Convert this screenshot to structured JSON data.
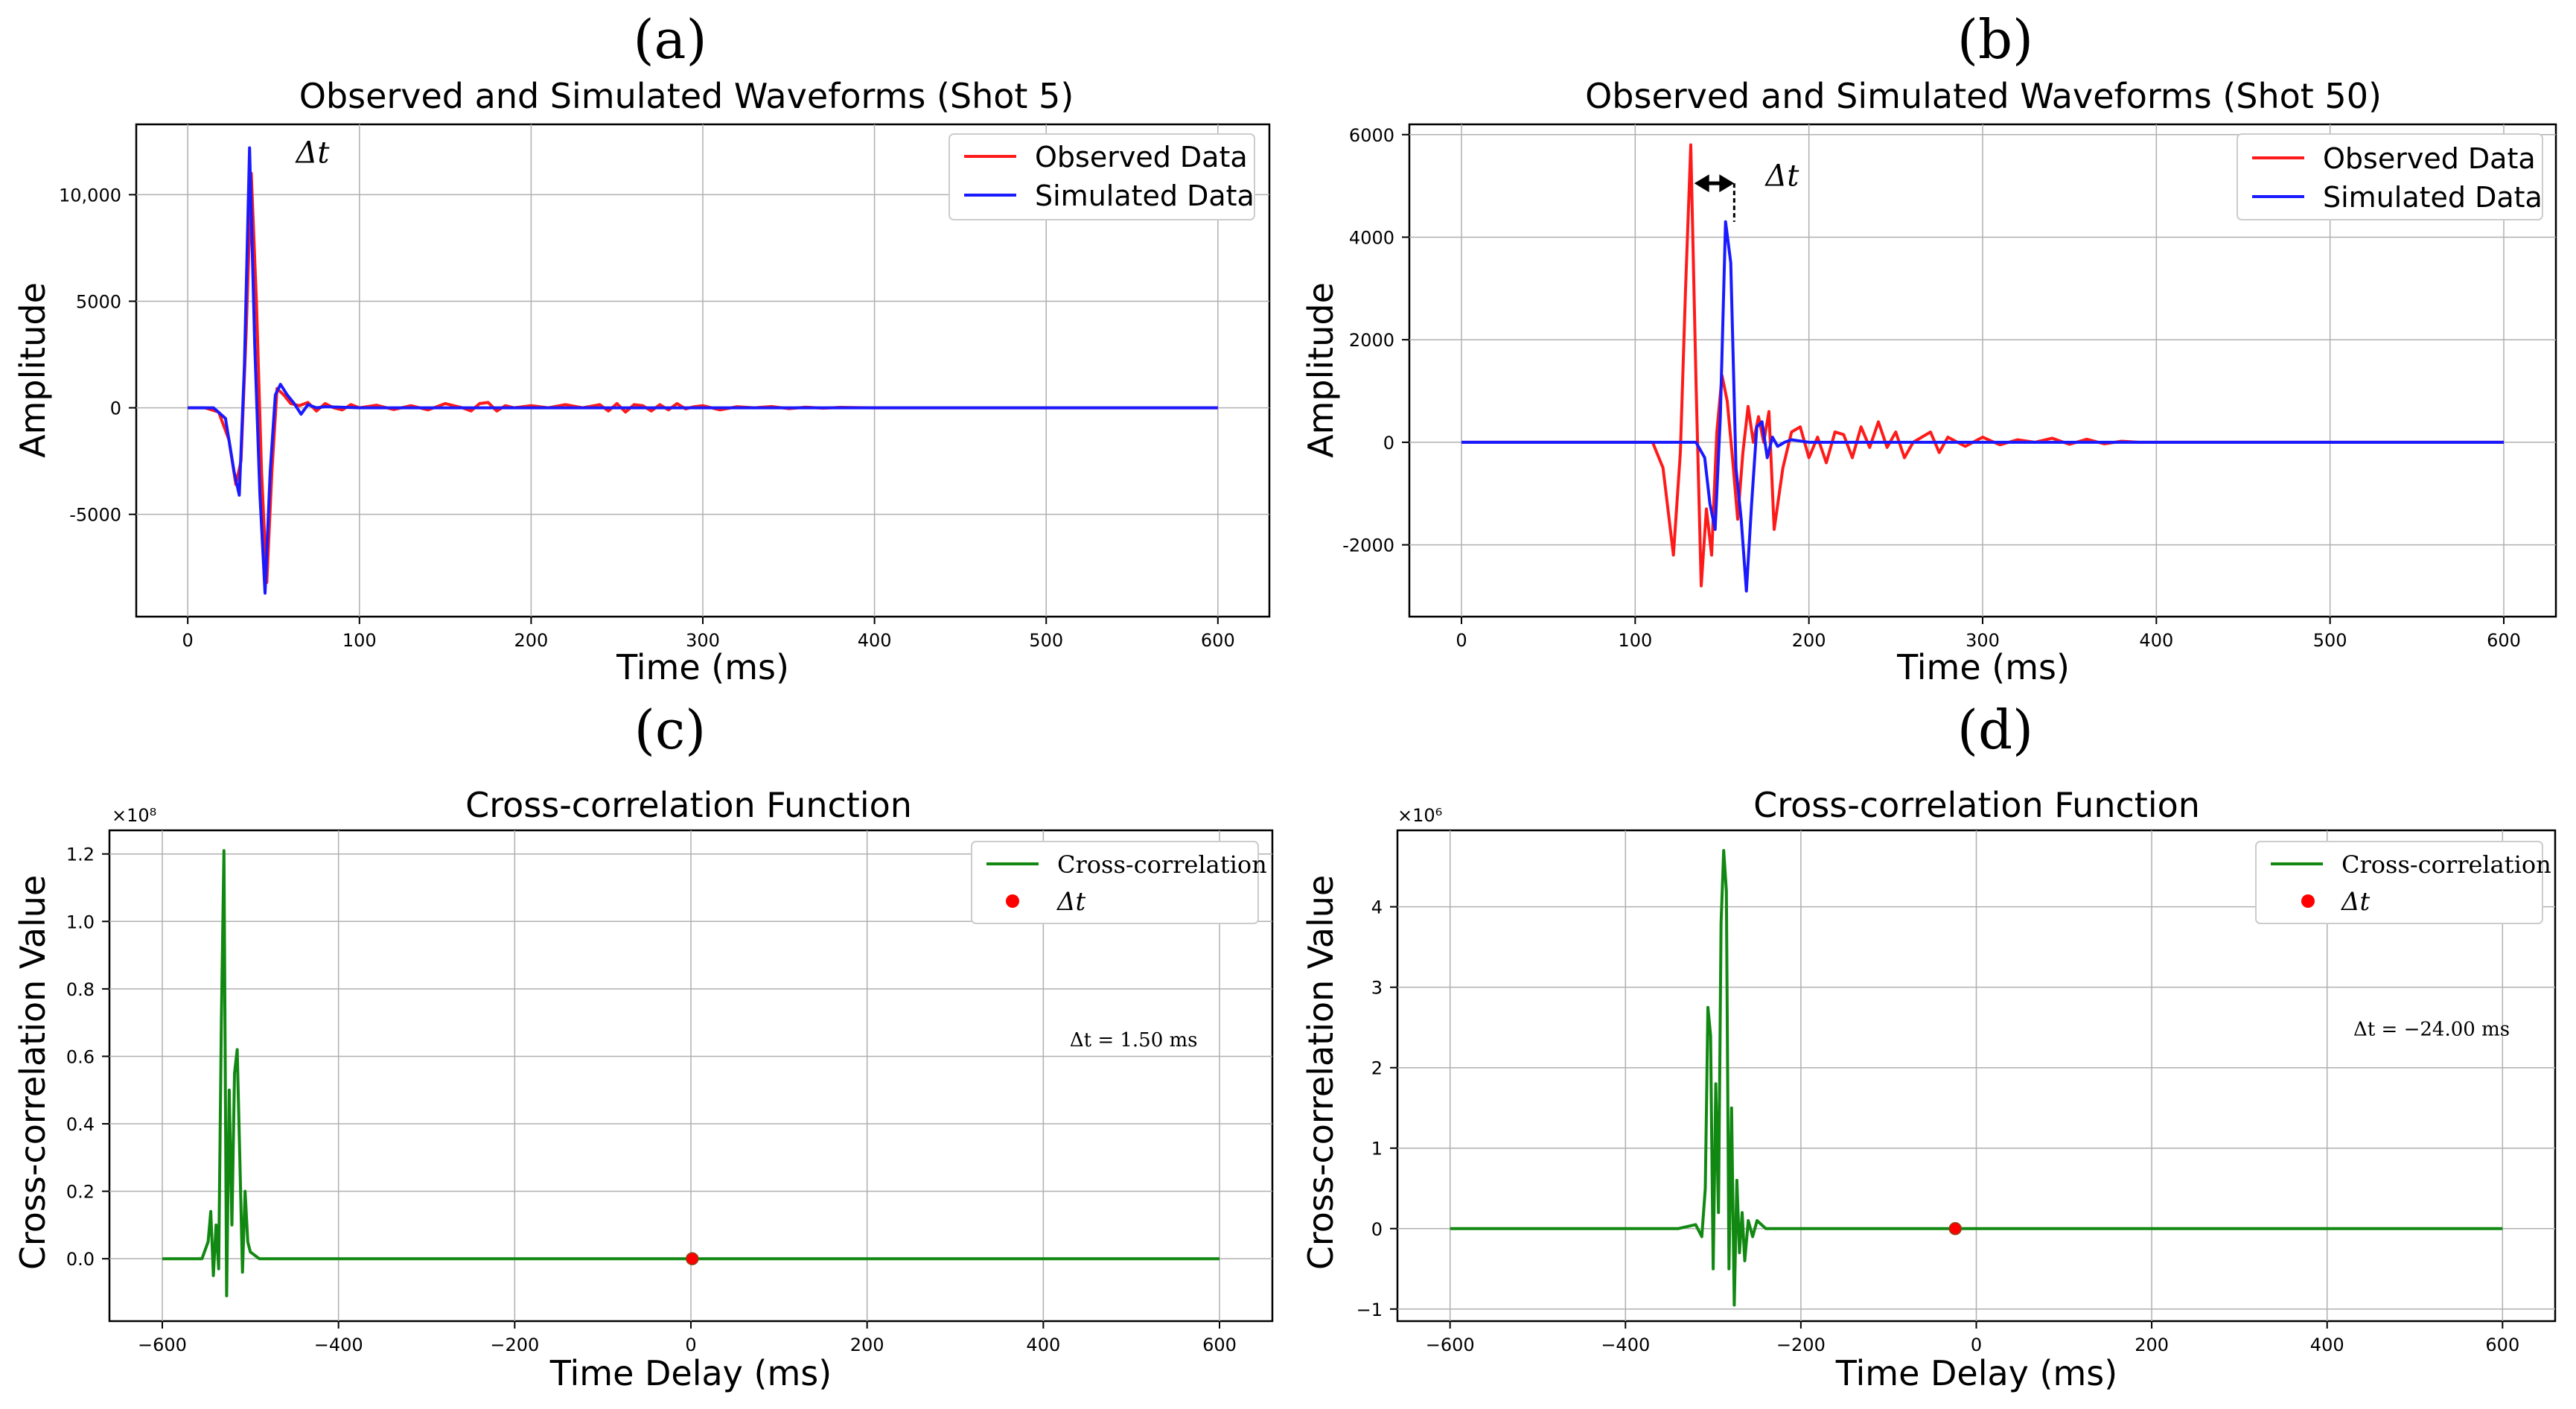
{
  "chart_data": [
    {
      "panel_label": "(a)",
      "type": "line",
      "title": "Observed and Simulated Waveforms (Shot 5)",
      "xlabel": "Time (ms)",
      "ylabel": "Amplitude",
      "xlim": [
        -30,
        630
      ],
      "ylim": [
        -9800,
        13300
      ],
      "xticks": [
        0,
        100,
        200,
        300,
        400,
        500,
        600
      ],
      "xtick_labels": [
        "0",
        "100",
        "200",
        "300",
        "400",
        "500",
        "600"
      ],
      "yticks": [
        -5000,
        0,
        5000,
        10000
      ],
      "ytick_labels": [
        "-5000",
        "0",
        "5000",
        "10,000"
      ],
      "grid": true,
      "legend_position": "top-right",
      "annotation": {
        "text": "Δt",
        "x": 63,
        "y": 11500
      },
      "series": [
        {
          "name": "Observed Data",
          "color": "#ff1a1a",
          "x": [
            0,
            10,
            18,
            24,
            28,
            31,
            34,
            37,
            40,
            43,
            46,
            49,
            52,
            56,
            60,
            65,
            70,
            75,
            80,
            85,
            90,
            95,
            100,
            110,
            120,
            130,
            140,
            150,
            160,
            165,
            170,
            175,
            180,
            185,
            190,
            200,
            210,
            220,
            230,
            240,
            245,
            250,
            255,
            260,
            265,
            270,
            275,
            280,
            285,
            290,
            295,
            300,
            310,
            320,
            330,
            340,
            350,
            360,
            370,
            380,
            400,
            450,
            500,
            550,
            600
          ],
          "y": [
            0,
            0,
            -200,
            -1500,
            -3600,
            -2500,
            3500,
            11000,
            5000,
            -3000,
            -8200,
            -3000,
            900,
            600,
            200,
            100,
            250,
            -150,
            200,
            0,
            -100,
            150,
            0,
            120,
            -80,
            100,
            -100,
            200,
            0,
            -150,
            200,
            250,
            -150,
            100,
            0,
            100,
            0,
            150,
            0,
            150,
            -150,
            200,
            -200,
            150,
            100,
            -150,
            150,
            -100,
            200,
            -50,
            50,
            100,
            -100,
            50,
            0,
            60,
            -40,
            30,
            -20,
            20,
            0,
            0,
            0,
            0,
            0
          ]
        },
        {
          "name": "Simulated Data",
          "color": "#1a1aff",
          "x": [
            0,
            15,
            22,
            27,
            30,
            33,
            36,
            39,
            42,
            45,
            48,
            51,
            54,
            58,
            62,
            66,
            70,
            75,
            80,
            100,
            150,
            200,
            300,
            400,
            500,
            600
          ],
          "y": [
            0,
            0,
            -500,
            -3000,
            -4100,
            2000,
            12200,
            3000,
            -4000,
            -8700,
            -3000,
            600,
            1100,
            600,
            200,
            -300,
            150,
            0,
            50,
            0,
            0,
            0,
            0,
            0,
            0,
            0
          ]
        }
      ]
    },
    {
      "panel_label": "(b)",
      "type": "line",
      "title": "Observed and Simulated Waveforms (Shot 50)",
      "xlabel": "Time (ms)",
      "ylabel": "Amplitude",
      "xlim": [
        -30,
        630
      ],
      "ylim": [
        -3400,
        6200
      ],
      "xticks": [
        0,
        100,
        200,
        300,
        400,
        500,
        600
      ],
      "xtick_labels": [
        "0",
        "100",
        "200",
        "300",
        "400",
        "500",
        "600"
      ],
      "yticks": [
        -2000,
        0,
        2000,
        4000,
        6000
      ],
      "ytick_labels": [
        "-2000",
        "0",
        "2000",
        "4000",
        "6000"
      ],
      "grid": true,
      "legend_position": "top-right",
      "annotation": {
        "text": "Δt",
        "x": 175,
        "y": 5000
      },
      "series": [
        {
          "name": "Observed Data",
          "color": "#ff1a1a",
          "x": [
            0,
            110,
            116,
            122,
            126,
            129,
            132,
            135,
            138,
            141,
            144,
            147,
            150,
            153,
            156,
            159,
            162,
            165,
            168,
            171,
            174,
            177,
            180,
            185,
            190,
            195,
            200,
            205,
            210,
            215,
            220,
            225,
            230,
            235,
            240,
            245,
            250,
            255,
            260,
            265,
            270,
            275,
            280,
            290,
            300,
            310,
            320,
            330,
            340,
            350,
            360,
            370,
            380,
            390,
            400,
            450,
            500,
            600
          ],
          "y": [
            0,
            0,
            -500,
            -2200,
            -200,
            3000,
            5800,
            1200,
            -2800,
            -1300,
            -2200,
            200,
            1300,
            800,
            -300,
            -1500,
            -200,
            700,
            0,
            500,
            0,
            600,
            -1700,
            -500,
            200,
            300,
            -300,
            100,
            -400,
            200,
            150,
            -300,
            300,
            -100,
            400,
            -100,
            200,
            -300,
            0,
            100,
            200,
            -200,
            100,
            -80,
            100,
            -50,
            50,
            0,
            80,
            -40,
            60,
            -30,
            20,
            0,
            0,
            0,
            0,
            0
          ]
        },
        {
          "name": "Simulated Data",
          "color": "#1a1aff",
          "x": [
            0,
            135,
            140,
            143,
            146,
            149,
            152,
            155,
            158,
            161,
            164,
            167,
            170,
            173,
            176,
            179,
            182,
            186,
            190,
            200,
            250,
            300,
            400,
            500,
            600
          ],
          "y": [
            0,
            0,
            -300,
            -1200,
            -1700,
            500,
            4300,
            3500,
            -500,
            -1500,
            -2900,
            -1200,
            300,
            400,
            -300,
            100,
            -80,
            0,
            50,
            0,
            0,
            0,
            0,
            0,
            0
          ]
        }
      ]
    },
    {
      "panel_label": "(c)",
      "type": "line",
      "title": "Cross-correlation Function",
      "xlabel": "Time Delay (ms)",
      "ylabel": "Cross-correlation Value",
      "scale_label": "×10⁸",
      "xlim": [
        -660,
        660
      ],
      "ylim": [
        -0.185,
        1.27
      ],
      "xticks": [
        -600,
        -400,
        -200,
        0,
        200,
        400,
        600
      ],
      "xtick_labels": [
        "−600",
        "−400",
        "−200",
        "0",
        "200",
        "400",
        "600"
      ],
      "yticks": [
        0.0,
        0.2,
        0.4,
        0.6,
        0.8,
        1.0,
        1.2
      ],
      "ytick_labels": [
        "0.0",
        "0.2",
        "0.4",
        "0.6",
        "0.8",
        "1.0",
        "1.2"
      ],
      "grid": true,
      "legend_position": "top-right",
      "annotation": {
        "text": "Δt = 1.50 ms",
        "x": 430,
        "y": 0.63
      },
      "marker": {
        "name": "Δt",
        "x": 1.5,
        "y": 0.0,
        "color": "#ff0000"
      },
      "series": [
        {
          "name": "Cross-correlation",
          "color": "#118811",
          "x": [
            -600,
            -555,
            -548,
            -545,
            -542,
            -539,
            -536,
            -533,
            -530,
            -527,
            -524,
            -521,
            -518,
            -515,
            -512,
            -509,
            -506,
            -503,
            -500,
            -495,
            -490,
            -480,
            600
          ],
          "y": [
            0.0,
            0.0,
            0.05,
            0.14,
            -0.05,
            0.1,
            -0.03,
            0.7,
            1.21,
            -0.11,
            0.5,
            0.1,
            0.55,
            0.62,
            0.3,
            -0.04,
            0.2,
            0.05,
            0.02,
            0.01,
            0.0,
            0.0,
            0.0
          ]
        },
        {
          "name": "Δt",
          "color": "#ff0000",
          "x": [
            1.5
          ],
          "y": [
            0.0
          ]
        }
      ]
    },
    {
      "panel_label": "(d)",
      "type": "line",
      "title": "Cross-correlation Function",
      "xlabel": "Time Delay (ms)",
      "ylabel": "Cross-correlation Value",
      "scale_label": "×10⁶",
      "xlim": [
        -660,
        660
      ],
      "ylim": [
        -1.15,
        4.95
      ],
      "xticks": [
        -600,
        -400,
        -200,
        0,
        200,
        400,
        600
      ],
      "xtick_labels": [
        "−600",
        "−400",
        "−200",
        "0",
        "200",
        "400",
        "600"
      ],
      "yticks": [
        -1,
        0,
        1,
        2,
        3,
        4
      ],
      "ytick_labels": [
        "−1",
        "0",
        "1",
        "2",
        "3",
        "4"
      ],
      "grid": true,
      "legend_position": "top-right",
      "annotation": {
        "text": "Δt = −24.00 ms",
        "x": 430,
        "y": 2.4
      },
      "marker": {
        "name": "Δt",
        "x": -24,
        "y": 0.0,
        "color": "#ff0000"
      },
      "series": [
        {
          "name": "Cross-correlation",
          "color": "#118811",
          "x": [
            -600,
            -340,
            -320,
            -313,
            -309,
            -306,
            -303,
            -300,
            -297,
            -294,
            -291,
            -288,
            -285,
            -282,
            -279,
            -276,
            -273,
            -270,
            -267,
            -264,
            -260,
            -255,
            -250,
            -245,
            -240,
            -230,
            600
          ],
          "y": [
            0,
            0,
            0.05,
            -0.1,
            0.5,
            2.75,
            2.4,
            -0.5,
            1.8,
            0.2,
            3.8,
            4.7,
            4.2,
            -0.5,
            1.5,
            -0.95,
            0.6,
            -0.3,
            0.2,
            -0.4,
            0.1,
            -0.1,
            0.1,
            0.05,
            0,
            0,
            0
          ]
        },
        {
          "name": "Δt",
          "color": "#ff0000",
          "x": [
            -24
          ],
          "y": [
            0.0
          ]
        }
      ]
    }
  ]
}
